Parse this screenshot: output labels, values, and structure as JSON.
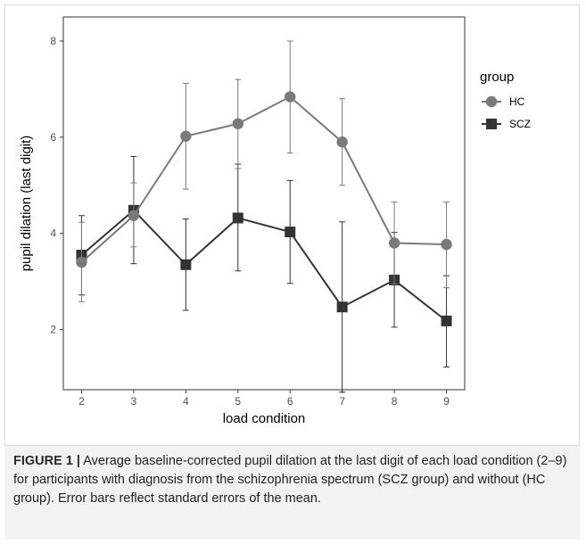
{
  "figure": {
    "label": "FIGURE 1 |",
    "caption": " Average baseline-corrected pupil dilation at the last digit of each load condition (2–9) for participants with diagnosis from the schizophrenia spectrum (SCZ group) and without (HC group). Error bars reflect standard errors of the mean."
  },
  "colors": {
    "HC": "#7a7a7a",
    "SCZ": "#333333"
  },
  "chart_data": {
    "type": "line",
    "xlabel": "load condition",
    "ylabel": "pupil dilation (last digit)",
    "x": [
      2,
      3,
      4,
      5,
      6,
      7,
      8,
      9
    ],
    "xlim": [
      1.65,
      9.35
    ],
    "ylim": [
      0.75,
      8.5
    ],
    "yticks": [
      2,
      4,
      6,
      8
    ],
    "legend": {
      "title": "group",
      "position": "right"
    },
    "series": [
      {
        "name": "HC",
        "marker": "circle",
        "values": [
          3.4,
          4.37,
          6.02,
          6.28,
          6.84,
          5.9,
          3.8,
          3.77
        ],
        "error_low": [
          2.58,
          3.72,
          4.92,
          5.35,
          5.67,
          5.0,
          2.95,
          2.87
        ],
        "error_high": [
          4.23,
          5.05,
          7.12,
          7.2,
          8.0,
          6.8,
          4.65,
          4.65
        ]
      },
      {
        "name": "SCZ",
        "marker": "square",
        "values": [
          3.55,
          4.48,
          3.35,
          4.32,
          4.03,
          2.47,
          3.03,
          2.18
        ],
        "error_low": [
          2.72,
          3.37,
          2.4,
          3.22,
          2.96,
          0.7,
          2.05,
          1.22
        ],
        "error_high": [
          4.37,
          5.6,
          4.3,
          5.44,
          5.1,
          4.24,
          4.02,
          3.12
        ]
      }
    ]
  }
}
